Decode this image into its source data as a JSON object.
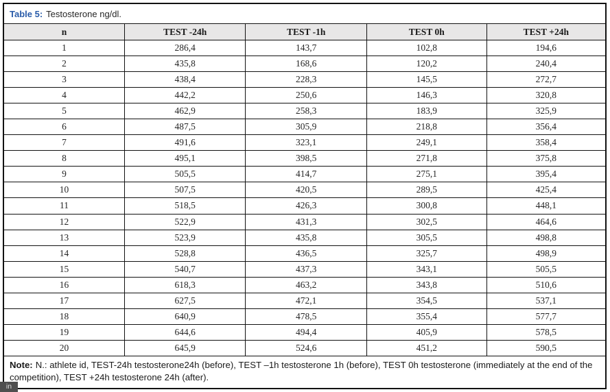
{
  "title": {
    "label": "Table 5:",
    "text": "Testosterone ng/dl."
  },
  "table": {
    "columns": [
      "n",
      "TEST -24h",
      "TEST -1h",
      "TEST 0h",
      "TEST +24h"
    ],
    "rows": [
      [
        "1",
        "286,4",
        "143,7",
        "102,8",
        "194,6"
      ],
      [
        "2",
        "435,8",
        "168,6",
        "120,2",
        "240,4"
      ],
      [
        "3",
        "438,4",
        "228,3",
        "145,5",
        "272,7"
      ],
      [
        "4",
        "442,2",
        "250,6",
        "146,3",
        "320,8"
      ],
      [
        "5",
        "462,9",
        "258,3",
        "183,9",
        "325,9"
      ],
      [
        "6",
        "487,5",
        "305,9",
        "218,8",
        "356,4"
      ],
      [
        "7",
        "491,6",
        "323,1",
        "249,1",
        "358,4"
      ],
      [
        "8",
        "495,1",
        "398,5",
        "271,8",
        "375,8"
      ],
      [
        "9",
        "505,5",
        "414,7",
        "275,1",
        "395,4"
      ],
      [
        "10",
        "507,5",
        "420,5",
        "289,5",
        "425,4"
      ],
      [
        "11",
        "518,5",
        "426,3",
        "300,8",
        "448,1"
      ],
      [
        "12",
        "522,9",
        "431,3",
        "302,5",
        "464,6"
      ],
      [
        "13",
        "523,9",
        "435,8",
        "305,5",
        "498,8"
      ],
      [
        "14",
        "528,8",
        "436,5",
        "325,7",
        "498,9"
      ],
      [
        "15",
        "540,7",
        "437,3",
        "343,1",
        "505,5"
      ],
      [
        "16",
        "618,3",
        "463,2",
        "343,8",
        "510,6"
      ],
      [
        "17",
        "627,5",
        "472,1",
        "354,5",
        "537,1"
      ],
      [
        "18",
        "640,9",
        "478,5",
        "355,4",
        "577,7"
      ],
      [
        "19",
        "644,6",
        "494,4",
        "405,9",
        "578,5"
      ],
      [
        "20",
        "645,9",
        "524,6",
        "451,2",
        "590,5"
      ]
    ]
  },
  "note": {
    "label": "Note:",
    "text": "N.: athlete id, TEST-24h testosterone24h (before), TEST –1h testosterone 1h (before), TEST 0h testosterone (immediately at the end of the competition), TEST +24h testosterone 24h (after)."
  },
  "badge": {
    "text": "in"
  },
  "colors": {
    "title_accent": "#2a5ca9",
    "header_bg": "#e8e7e7",
    "border": "#111111",
    "body_text": "#262626"
  }
}
